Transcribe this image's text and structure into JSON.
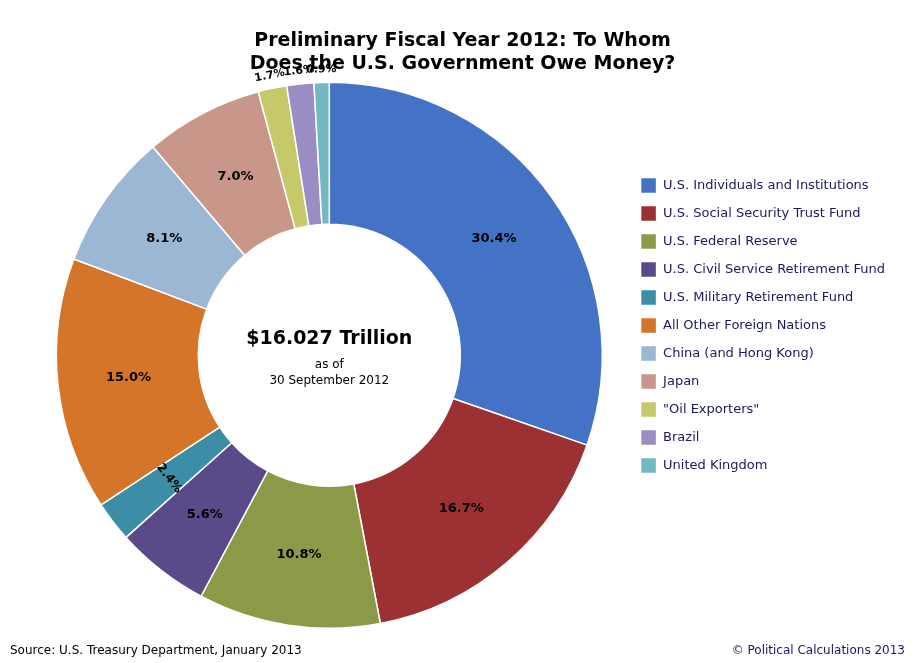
{
  "chart_data": {
    "type": "doughnut",
    "title": "Preliminary Fiscal Year 2012: To Whom\nDoes the U.S. Government Owe Money?",
    "categories": [
      "U.S. Individuals and Institutions",
      "U.S. Social Security Trust Fund",
      "U.S. Federal Reserve",
      "U.S. Civil Service Retirement Fund",
      "U.S. Military Retirement Fund",
      "All Other Foreign Nations",
      "China (and Hong Kong)",
      "Japan",
      "\"Oil Exporters\"",
      "Brazil",
      "United Kingdom"
    ],
    "values": [
      30.4,
      16.7,
      10.8,
      5.6,
      2.4,
      15.0,
      8.1,
      7.0,
      1.7,
      1.6,
      0.9
    ],
    "value_labels": [
      "30.4%",
      "16.7%",
      "10.8%",
      "5.6%",
      "2.4%",
      "15.0%",
      "8.1%",
      "7.0%",
      "1.7%",
      "1.6%",
      "0.9%"
    ],
    "colors": [
      "#4472C4",
      "#9B3132",
      "#8B9A46",
      "#5B4A8A",
      "#3B8EA5",
      "#D4752A",
      "#9BB7D4",
      "#C9968A",
      "#C5C96A",
      "#9B8DC4",
      "#73B8C4"
    ],
    "data_labels": true,
    "legend": "right",
    "annotations": [
      "$16.027 Trillion",
      "as of\n30 September 2012",
      "Source: U.S. Treasury Department, January 2013",
      "© Political Calculations 2013"
    ]
  }
}
